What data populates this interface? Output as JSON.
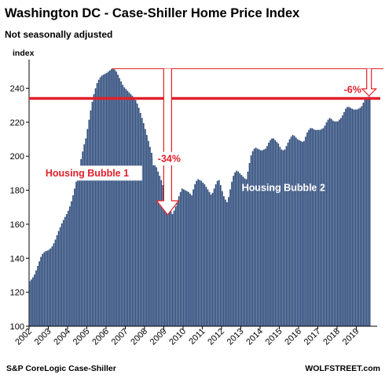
{
  "title": "Washington DC - Case-Shiller Home Price Index",
  "subtitle": "Not seasonally adjusted",
  "source": "S&P CoreLogic Case-Shiller",
  "brand": "WOLFSTREET.com",
  "chart_data": {
    "type": "bar",
    "title": "Washington DC - Case-Shiller Home Price Index",
    "subtitle": "Not seasonally adjusted",
    "ylabel": "index",
    "ylim": [
      100,
      255
    ],
    "yticks": [
      100,
      120,
      140,
      160,
      180,
      200,
      220,
      240
    ],
    "xticks": [
      "2002",
      "2003",
      "2004",
      "2005",
      "2006",
      "2007",
      "2008",
      "2009",
      "2010",
      "2011",
      "2012",
      "2013",
      "2014",
      "2015",
      "2016",
      "2017",
      "2018",
      "2019"
    ],
    "frequency": "monthly",
    "start": "2002-01",
    "grid": false,
    "bar_color": "#2c4a7a",
    "annotation_color": "#e0202a",
    "series": [
      {
        "values": [
          126.5,
          127.5,
          128.8,
          130.5,
          132.8,
          135.5,
          138.2,
          140.8,
          142.5,
          143.5,
          144.2,
          144.5,
          145.0,
          145.8,
          147.0,
          148.8,
          151.0,
          153.5,
          156.0,
          158.3,
          160.5,
          162.5,
          164.3,
          166.0,
          168.0,
          170.5,
          173.5,
          177.0,
          181.0,
          185.0,
          189.3,
          193.8,
          198.3,
          202.8,
          207.0,
          210.5,
          216.0,
          221.5,
          227.0,
          232.0,
          236.5,
          240.0,
          243.0,
          245.0,
          246.5,
          247.5,
          248.0,
          248.5,
          249.0,
          249.8,
          250.5,
          251.3,
          251.5,
          251.0,
          249.8,
          248.0,
          246.0,
          244.0,
          242.0,
          240.5,
          239.5,
          238.5,
          237.5,
          236.5,
          235.5,
          234.5,
          233.0,
          231.0,
          228.5,
          225.5,
          222.5,
          219.5,
          216.0,
          212.5,
          209.0,
          205.5,
          202.0,
          199.0,
          196.0,
          193.5,
          191.0,
          188.5,
          186.0,
          183.0,
          180.0,
          176.5,
          173.0,
          170.0,
          167.5,
          166.0,
          168.0,
          170.5,
          173.5,
          176.5,
          179.0,
          181.0,
          180.5,
          180.0,
          179.5,
          179.0,
          178.0,
          177.0,
          180.5,
          183.5,
          185.5,
          186.5,
          186.0,
          185.5,
          184.5,
          183.5,
          182.0,
          180.5,
          179.0,
          177.5,
          178.5,
          181.0,
          183.5,
          185.5,
          186.0,
          183.0,
          179.5,
          176.5,
          174.5,
          173.0,
          176.0,
          180.5,
          185.0,
          188.5,
          190.5,
          191.5,
          191.0,
          190.0,
          189.0,
          188.0,
          187.0,
          186.5,
          191.0,
          196.0,
          200.5,
          203.0,
          204.5,
          205.0,
          204.5,
          204.0,
          203.5,
          203.5,
          204.0,
          204.5,
          206.0,
          208.0,
          209.5,
          210.5,
          210.5,
          209.5,
          208.5,
          207.5,
          205.5,
          204.0,
          203.5,
          204.0,
          206.0,
          208.0,
          210.0,
          211.5,
          212.5,
          212.0,
          211.0,
          210.0,
          209.5,
          209.0,
          208.5,
          209.0,
          211.5,
          214.0,
          215.5,
          216.5,
          216.5,
          216.0,
          215.5,
          215.5,
          215.5,
          215.5,
          216.0,
          216.5,
          218.0,
          220.0,
          221.5,
          222.5,
          222.0,
          221.0,
          220.5,
          220.5,
          220.5,
          221.5,
          222.5,
          224.0,
          226.0,
          228.0,
          229.0,
          229.0,
          228.5,
          228.0,
          227.5,
          227.5,
          227.5,
          228.0,
          228.5,
          229.5,
          231.5,
          233.5,
          234.5,
          235.0,
          235.0
        ]
      }
    ],
    "reference_lines": [
      {
        "value": 234,
        "color": "#e0202a"
      },
      {
        "value": 251.5,
        "color": "#e0202a"
      }
    ],
    "annotations": [
      {
        "text": "-34%",
        "x_year": 2009.2,
        "y": 197,
        "arrow_top": 251.5,
        "arrow_tip": 165.5
      },
      {
        "text": "-6%",
        "x_year": 2019.5,
        "y": 239.5,
        "arrow_top": 251.5,
        "arrow_tip": 235.5
      },
      {
        "text": "Housing Bubble 1",
        "x_year": 2002.85,
        "y": 188
      },
      {
        "text": "Housing Bubble 2",
        "x_year": 2013.05,
        "y": 179.5
      }
    ]
  }
}
